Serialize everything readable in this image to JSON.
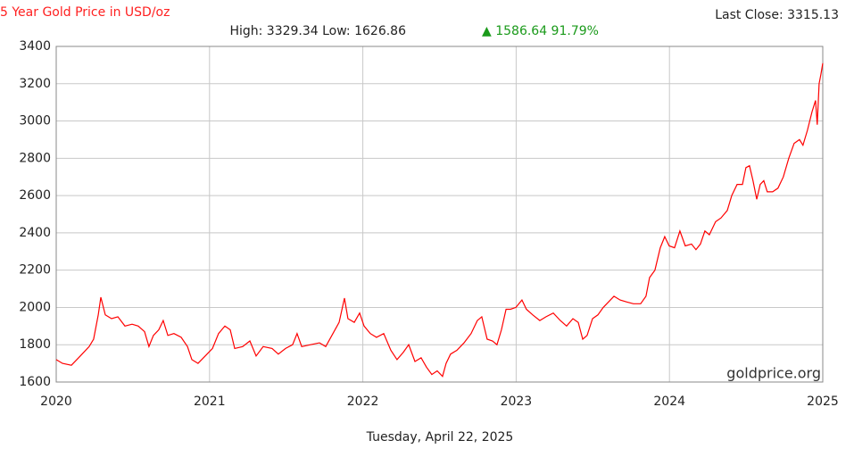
{
  "chart_data": {
    "type": "line",
    "title": "5 Year Gold Price in USD/oz",
    "last_close": "Last Close: 3315.13",
    "stats": "High: 3329.34 Low: 1626.86",
    "change": "▲ 1586.64 91.79%",
    "watermark": "goldprice.org",
    "xlabel": "Tuesday, April 22, 2025",
    "color": "#ff0000",
    "grid": true,
    "xlim": [
      2020,
      2025
    ],
    "xticks": [
      2020,
      2021,
      2022,
      2023,
      2024,
      2025
    ],
    "ylim": [
      1600,
      3400
    ],
    "yticks": [
      1600,
      1800,
      2000,
      2200,
      2400,
      2600,
      2800,
      3000,
      3200,
      3400
    ],
    "x": [
      2020.0,
      2020.041,
      2020.099,
      2020.157,
      2020.215,
      2020.244,
      2020.274,
      2020.291,
      2020.32,
      2020.361,
      2020.402,
      2020.448,
      2020.495,
      2020.535,
      2020.576,
      2020.605,
      2020.634,
      2020.669,
      2020.698,
      2020.728,
      2020.768,
      2020.815,
      2020.856,
      2020.885,
      2020.925,
      2020.972,
      2021.019,
      2021.059,
      2021.1,
      2021.135,
      2021.164,
      2021.216,
      2021.263,
      2021.304,
      2021.35,
      2021.408,
      2021.449,
      2021.496,
      2021.542,
      2021.571,
      2021.601,
      2021.659,
      2021.717,
      2021.758,
      2021.798,
      2021.845,
      2021.88,
      2021.903,
      2021.944,
      2021.979,
      2022.008,
      2022.049,
      2022.089,
      2022.136,
      2022.183,
      2022.223,
      2022.264,
      2022.299,
      2022.34,
      2022.38,
      2022.415,
      2022.45,
      2022.485,
      2022.52,
      2022.543,
      2022.572,
      2022.613,
      2022.66,
      2022.706,
      2022.747,
      2022.776,
      2022.811,
      2022.846,
      2022.875,
      2022.904,
      2022.934,
      2022.963,
      2022.998,
      2023.038,
      2023.067,
      2023.108,
      2023.154,
      2023.195,
      2023.242,
      2023.288,
      2023.329,
      2023.37,
      2023.405,
      2023.434,
      2023.463,
      2023.498,
      2023.533,
      2023.568,
      2023.603,
      2023.638,
      2023.678,
      2023.719,
      2023.765,
      2023.812,
      2023.847,
      2023.87,
      2023.905,
      2023.94,
      2023.969,
      2023.998,
      2024.033,
      2024.068,
      2024.103,
      2024.144,
      2024.173,
      2024.202,
      2024.231,
      2024.26,
      2024.301,
      2024.336,
      2024.377,
      2024.406,
      2024.441,
      2024.476,
      2024.499,
      2024.522,
      2024.545,
      2024.569,
      2024.592,
      2024.615,
      2024.638,
      2024.673,
      2024.708,
      2024.743,
      2024.778,
      2024.813,
      2024.848,
      2024.871,
      2024.9,
      2024.93,
      2024.953,
      2024.964,
      2024.976,
      2024.988,
      2025.0
    ],
    "values": [
      1720,
      1700,
      1690,
      1740,
      1790,
      1830,
      1960,
      2055,
      1960,
      1940,
      1950,
      1900,
      1910,
      1900,
      1870,
      1790,
      1850,
      1880,
      1930,
      1850,
      1860,
      1840,
      1790,
      1720,
      1700,
      1740,
      1780,
      1860,
      1900,
      1880,
      1780,
      1790,
      1820,
      1740,
      1790,
      1780,
      1750,
      1780,
      1800,
      1860,
      1790,
      1800,
      1810,
      1790,
      1850,
      1920,
      2050,
      1940,
      1920,
      1970,
      1900,
      1860,
      1840,
      1860,
      1770,
      1720,
      1760,
      1800,
      1710,
      1730,
      1680,
      1640,
      1660,
      1630,
      1700,
      1750,
      1770,
      1810,
      1860,
      1930,
      1950,
      1830,
      1820,
      1800,
      1880,
      1990,
      1990,
      2000,
      2040,
      1990,
      1960,
      1930,
      1950,
      1970,
      1930,
      1900,
      1940,
      1920,
      1830,
      1850,
      1940,
      1960,
      2000,
      2030,
      2060,
      2040,
      2030,
      2020,
      2020,
      2060,
      2160,
      2200,
      2320,
      2380,
      2330,
      2320,
      2410,
      2330,
      2340,
      2310,
      2340,
      2410,
      2390,
      2460,
      2480,
      2520,
      2600,
      2660,
      2660,
      2750,
      2760,
      2680,
      2580,
      2660,
      2680,
      2620,
      2620,
      2640,
      2700,
      2800,
      2880,
      2900,
      2870,
      2950,
      3050,
      3110,
      2980,
      3200,
      3250,
      3310
    ]
  }
}
